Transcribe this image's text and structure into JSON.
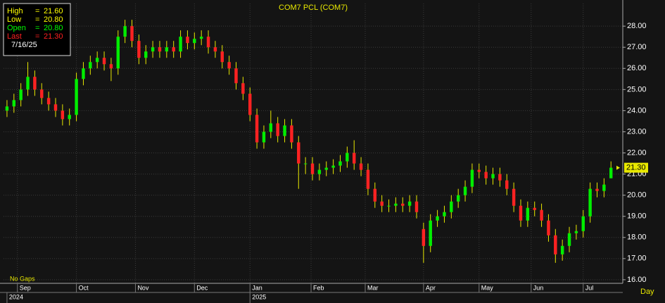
{
  "chart_data": {
    "type": "candlestick",
    "title": "COM7  PCL  (COM7)",
    "info": {
      "equals": "=",
      "date": "7/16/25",
      "items": [
        {
          "name": "High",
          "value": "21.60",
          "color": "#ffff00"
        },
        {
          "name": "Low",
          "value": "20.80",
          "color": "#ffff00"
        },
        {
          "name": "Open",
          "value": "20.80",
          "color": "#00ff00"
        },
        {
          "name": "Last",
          "value": "21.30",
          "color": "#ff2020"
        }
      ]
    },
    "note": "No Gaps",
    "period": "Day",
    "last_price": {
      "value": 21.3,
      "label": "21.30"
    },
    "up_color": "#00ee00",
    "down_color": "#ff2222",
    "wick_color": "#e8e800",
    "grid": true,
    "xlim": [
      -0.5,
      88.7
    ],
    "ylim": [
      15.83,
      29.07
    ],
    "yticks": [
      {
        "value": 16,
        "label": "16.00"
      },
      {
        "value": 17,
        "label": "17.00"
      },
      {
        "value": 18,
        "label": "18.00"
      },
      {
        "value": 19,
        "label": "19.00"
      },
      {
        "value": 20,
        "label": "20.00"
      },
      {
        "value": 21,
        "label": "21.00"
      },
      {
        "value": 22,
        "label": "22.00"
      },
      {
        "value": 23,
        "label": "23.00"
      },
      {
        "value": 24,
        "label": "24.00"
      },
      {
        "value": 25,
        "label": "25.00"
      },
      {
        "value": 26,
        "label": "26.00"
      },
      {
        "value": 27,
        "label": "27.00"
      },
      {
        "value": 28,
        "label": "28.00"
      }
    ],
    "xticks": [
      {
        "value": 1.5,
        "label": "Sep"
      },
      {
        "value": 10,
        "label": "Oct"
      },
      {
        "value": 18.5,
        "label": "Nov"
      },
      {
        "value": 27,
        "label": "Dec"
      },
      {
        "value": 35,
        "label": "Jan"
      },
      {
        "value": 43.8,
        "label": "Feb"
      },
      {
        "value": 51.6,
        "label": "Mar"
      },
      {
        "value": 60,
        "label": "Apr"
      },
      {
        "value": 68,
        "label": "May"
      },
      {
        "value": 75.5,
        "label": "Jun"
      },
      {
        "value": 83,
        "label": "Jul"
      }
    ],
    "year_ticks": [
      {
        "value": 0,
        "label": "2024"
      },
      {
        "value": 35,
        "label": "2025"
      }
    ],
    "open": [
      24.0,
      24.2,
      24.5,
      25.0,
      25.6,
      25.0,
      24.6,
      24.3,
      24.0,
      23.6,
      23.8,
      25.5,
      26.0,
      26.3,
      26.5,
      26.2,
      26.0,
      27.5,
      28.0,
      27.3,
      26.5,
      26.8,
      27.0,
      26.8,
      27.0,
      26.8,
      27.5,
      27.2,
      27.4,
      27.5,
      27.0,
      26.8,
      26.3,
      26.0,
      25.3,
      24.8,
      23.8,
      22.5,
      23.0,
      23.4,
      22.8,
      23.3,
      22.5,
      21.5,
      21.5,
      21.0,
      21.2,
      21.3,
      21.4,
      21.6,
      22.0,
      21.5,
      21.2,
      20.3,
      19.7,
      19.5,
      19.5,
      19.6,
      19.5,
      19.7,
      18.4,
      17.6,
      18.8,
      19.0,
      19.2,
      19.7,
      20.0,
      20.4,
      21.2,
      21.1,
      20.8,
      21.0,
      20.7,
      20.3,
      19.5,
      18.8,
      19.4,
      19.3,
      18.8,
      18.1,
      17.2,
      17.6,
      18.2,
      18.3,
      19.0,
      20.3,
      20.2,
      20.8
    ],
    "high": [
      24.5,
      24.8,
      25.3,
      26.3,
      25.9,
      25.3,
      24.9,
      24.6,
      24.3,
      24.1,
      25.8,
      26.3,
      26.6,
      26.8,
      26.8,
      26.5,
      27.8,
      28.3,
      28.3,
      27.6,
      27.1,
      27.3,
      27.3,
      27.3,
      27.3,
      27.8,
      27.8,
      27.7,
      27.8,
      27.8,
      27.3,
      27.1,
      26.6,
      26.3,
      25.6,
      25.1,
      24.1,
      23.3,
      24.0,
      23.7,
      23.6,
      23.6,
      22.8,
      21.8,
      21.8,
      21.5,
      21.6,
      21.7,
      21.9,
      22.3,
      22.6,
      21.8,
      21.5,
      20.6,
      20.0,
      19.8,
      19.9,
      19.9,
      20.0,
      20.0,
      18.7,
      19.1,
      19.3,
      19.5,
      20.0,
      20.3,
      20.7,
      21.5,
      21.5,
      21.4,
      21.3,
      21.3,
      21.0,
      20.6,
      19.8,
      19.7,
      19.7,
      19.6,
      19.1,
      18.4,
      17.9,
      18.5,
      18.6,
      19.3,
      20.6,
      20.6,
      20.8,
      21.6
    ],
    "low": [
      23.7,
      23.9,
      24.2,
      24.7,
      24.7,
      24.3,
      24.0,
      23.7,
      23.3,
      23.3,
      23.5,
      25.2,
      25.7,
      26.0,
      25.9,
      25.4,
      25.7,
      27.2,
      27.0,
      26.2,
      26.2,
      26.5,
      26.5,
      26.5,
      26.5,
      26.5,
      26.9,
      26.9,
      27.1,
      26.7,
      26.5,
      26.0,
      25.7,
      25.0,
      24.5,
      23.5,
      22.2,
      22.2,
      22.7,
      22.5,
      22.5,
      22.2,
      20.3,
      21.0,
      20.7,
      20.7,
      20.9,
      21.0,
      21.1,
      21.3,
      21.2,
      20.9,
      20.0,
      19.4,
      19.2,
      19.2,
      19.2,
      19.2,
      19.2,
      18.9,
      16.8,
      17.3,
      18.5,
      18.7,
      18.9,
      19.4,
      19.7,
      20.1,
      20.8,
      20.5,
      20.5,
      20.4,
      20.0,
      19.2,
      18.5,
      18.5,
      19.0,
      18.5,
      17.8,
      16.8,
      16.9,
      17.3,
      17.9,
      18.0,
      18.7,
      19.9,
      19.9,
      20.8
    ],
    "close": [
      24.2,
      24.5,
      25.0,
      25.6,
      25.0,
      24.6,
      24.3,
      24.0,
      23.6,
      23.8,
      25.5,
      26.0,
      26.3,
      26.5,
      26.2,
      26.0,
      27.5,
      28.0,
      27.3,
      26.5,
      26.8,
      27.0,
      26.8,
      27.0,
      26.8,
      27.5,
      27.2,
      27.4,
      27.5,
      27.0,
      26.8,
      26.3,
      26.0,
      25.3,
      24.8,
      23.8,
      22.5,
      23.0,
      23.4,
      22.8,
      23.3,
      22.5,
      21.5,
      21.5,
      21.0,
      21.2,
      21.3,
      21.4,
      21.6,
      22.0,
      21.5,
      21.2,
      20.3,
      19.7,
      19.5,
      19.5,
      19.6,
      19.5,
      19.7,
      19.2,
      17.6,
      18.8,
      19.0,
      19.2,
      19.7,
      20.0,
      20.4,
      21.2,
      21.1,
      20.8,
      21.0,
      20.7,
      20.3,
      19.5,
      18.8,
      19.4,
      19.3,
      18.8,
      18.1,
      17.2,
      17.6,
      18.2,
      18.3,
      19.0,
      20.3,
      20.2,
      20.5,
      21.3
    ]
  }
}
